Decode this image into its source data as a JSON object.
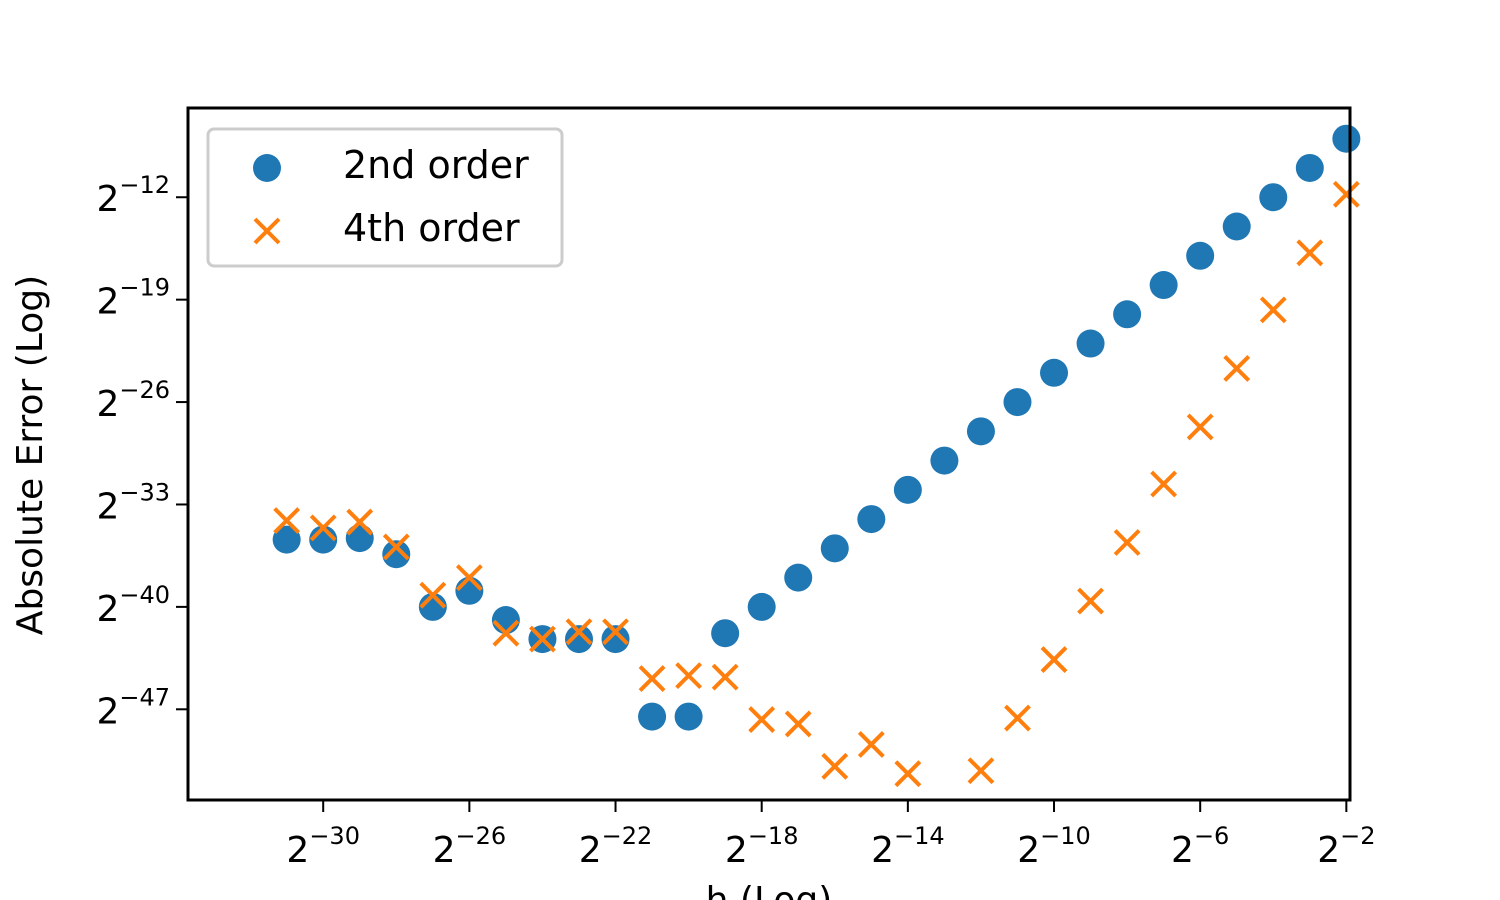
{
  "chart_data": {
    "type": "scatter",
    "xlabel": "h (Log)",
    "ylabel": "Absolute Error (Log)",
    "x_scale": "log2",
    "y_scale": "log2",
    "x_ticks": [
      {
        "base": "2",
        "exp": "−30",
        "value": -30
      },
      {
        "base": "2",
        "exp": "−26",
        "value": -26
      },
      {
        "base": "2",
        "exp": "−22",
        "value": -22
      },
      {
        "base": "2",
        "exp": "−18",
        "value": -18
      },
      {
        "base": "2",
        "exp": "−14",
        "value": -14
      },
      {
        "base": "2",
        "exp": "−10",
        "value": -10
      },
      {
        "base": "2",
        "exp": "−6",
        "value": -6
      },
      {
        "base": "2",
        "exp": "−2",
        "value": -2
      }
    ],
    "y_ticks": [
      {
        "base": "2",
        "exp": "−12",
        "value": -12
      },
      {
        "base": "2",
        "exp": "−19",
        "value": -19
      },
      {
        "base": "2",
        "exp": "−26",
        "value": -26
      },
      {
        "base": "2",
        "exp": "−33",
        "value": -33
      },
      {
        "base": "2",
        "exp": "−40",
        "value": -40
      },
      {
        "base": "2",
        "exp": "−47",
        "value": -47
      }
    ],
    "xlim_log2": [
      -33.7,
      -1.9
    ],
    "ylim_log2": [
      -53.2,
      -5.9
    ],
    "grid": false,
    "legend_position": "top-left",
    "series": [
      {
        "name": "2nd order",
        "marker": "circle",
        "color": "#1f77b4",
        "x_log2": [
          -31,
          -30,
          -29,
          -28,
          -27,
          -26,
          -25,
          -24,
          -23,
          -22,
          -21,
          -20,
          -19,
          -18,
          -17,
          -16,
          -15,
          -14,
          -13,
          -12,
          -11,
          -10,
          -9,
          -8,
          -7,
          -6,
          -5,
          -4,
          -3,
          -2
        ],
        "y_log2": [
          -35.4,
          -35.4,
          -35.3,
          -36.4,
          -40.0,
          -38.9,
          -40.9,
          -42.2,
          -42.2,
          -42.2,
          -47.5,
          -47.5,
          -41.8,
          -40.0,
          -38.0,
          -36.0,
          -34.0,
          -32.0,
          -30.0,
          -28.0,
          -26.0,
          -24.0,
          -22.0,
          -20.0,
          -18.0,
          -16.0,
          -14.0,
          -12.0,
          -10.0,
          -8.0
        ]
      },
      {
        "name": "4th order",
        "marker": "x",
        "color": "#ff7f0e",
        "x_log2": [
          -31,
          -30,
          -29,
          -28,
          -27,
          -26,
          -25,
          -24,
          -23,
          -22,
          -21,
          -20,
          -19,
          -18,
          -17,
          -16,
          -15,
          -14,
          -12,
          -11,
          -10,
          -9,
          -8,
          -7,
          -6,
          -5,
          -4,
          -3,
          -2
        ],
        "y_log2": [
          -34.1,
          -34.6,
          -34.2,
          -35.9,
          -39.2,
          -38.0,
          -41.8,
          -42.2,
          -41.7,
          -41.7,
          -44.9,
          -44.7,
          -44.8,
          -47.7,
          -48.0,
          -50.9,
          -49.4,
          -51.4,
          -51.2,
          -47.6,
          -43.6,
          -39.6,
          -35.6,
          -31.6,
          -27.7,
          -23.7,
          -19.7,
          -15.8,
          -11.8
        ]
      }
    ]
  }
}
